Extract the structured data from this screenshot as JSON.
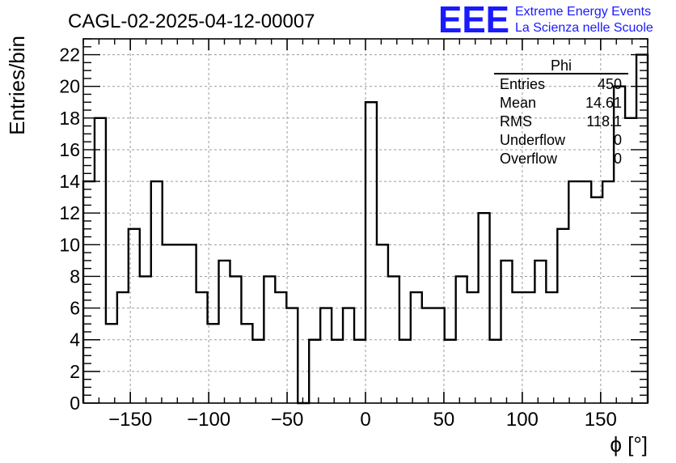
{
  "header": {
    "run_title": "CAGL-02-2025-04-12-00007",
    "logo_letters": "EEE",
    "logo_line1": "Extreme Energy Events",
    "logo_line2": "La Scienza nelle Scuole"
  },
  "stats_box": {
    "title": "Phi",
    "rows": [
      {
        "label": "Entries",
        "value": "450"
      },
      {
        "label": "Mean",
        "value": "14.61"
      },
      {
        "label": "RMS",
        "value": "118.1"
      },
      {
        "label": "Underflow",
        "value": "0"
      },
      {
        "label": "Overflow",
        "value": "0"
      }
    ]
  },
  "chart_data": {
    "type": "bar",
    "title": "CAGL-02-2025-04-12-00007",
    "xlabel": "ϕ [°]",
    "ylabel": "Entries/bin",
    "xlim": [
      -180,
      180
    ],
    "ylim": [
      0,
      23
    ],
    "grid": true,
    "bin_edges": [
      -180,
      -172.8,
      -165.6,
      -158.4,
      -151.2,
      -144,
      -136.8,
      -129.6,
      -122.4,
      -115.2,
      -108,
      -100.8,
      -93.6,
      -86.4,
      -79.2,
      -72,
      -64.8,
      -57.6,
      -50.4,
      -43.2,
      -36,
      -28.8,
      -21.6,
      -14.4,
      -7.2,
      0,
      7.2,
      14.4,
      21.6,
      28.8,
      36,
      43.2,
      50.4,
      57.6,
      64.8,
      72,
      79.2,
      86.4,
      93.6,
      100.8,
      108,
      115.2,
      122.4,
      129.6,
      136.8,
      144,
      151.2,
      158.4,
      165.6,
      172.8,
      180
    ],
    "values": [
      14,
      18,
      5,
      7,
      11,
      8,
      14,
      10,
      10,
      10,
      7,
      5,
      9,
      8,
      5,
      4,
      8,
      7,
      6,
      0,
      4,
      6,
      4,
      6,
      4,
      19,
      10,
      8,
      4,
      7,
      6,
      6,
      4,
      8,
      7,
      12,
      4,
      9,
      7,
      7,
      9,
      7,
      11,
      14,
      14,
      13,
      14,
      20,
      18,
      22
    ],
    "x_ticks": [
      "−150",
      "−100",
      "−50",
      "0",
      "50",
      "100",
      "150"
    ],
    "x_tick_values": [
      -150,
      -100,
      -50,
      0,
      50,
      100,
      150
    ],
    "y_ticks": [
      "0",
      "2",
      "4",
      "6",
      "8",
      "10",
      "12",
      "14",
      "16",
      "18",
      "20",
      "22"
    ],
    "y_tick_values": [
      0,
      2,
      4,
      6,
      8,
      10,
      12,
      14,
      16,
      18,
      20,
      22
    ]
  }
}
